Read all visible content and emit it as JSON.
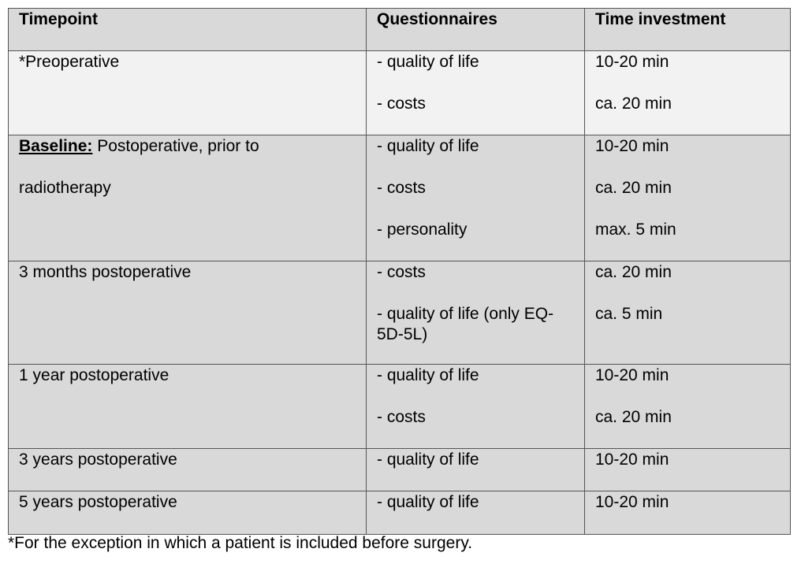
{
  "table": {
    "headers": [
      "Timepoint",
      "Questionnaires",
      "Time investment"
    ],
    "rows": [
      {
        "timepoint_prefix": "",
        "timepoint": "*Preoperative",
        "timepoint_line2": "",
        "questionnaires": [
          "- quality of life",
          "- costs"
        ],
        "time": [
          "10-20 min",
          "ca. 20 min"
        ]
      },
      {
        "timepoint_prefix": "Baseline:",
        "timepoint": " Postoperative, prior to",
        "timepoint_line2": "radiotherapy",
        "questionnaires": [
          "- quality of life",
          "- costs",
          "- personality"
        ],
        "time": [
          "10-20 min",
          "ca. 20 min",
          "max. 5 min"
        ]
      },
      {
        "timepoint_prefix": "",
        "timepoint": "3 months postoperative",
        "timepoint_line2": "",
        "questionnaires": [
          "- costs",
          "- quality of life (only EQ-",
          "5D-5L)"
        ],
        "time": [
          "ca. 20 min",
          "ca. 5 min"
        ]
      },
      {
        "timepoint_prefix": "",
        "timepoint": "1 year postoperative",
        "timepoint_line2": "",
        "questionnaires": [
          "- quality of life",
          "- costs"
        ],
        "time": [
          "10-20 min",
          "ca. 20 min"
        ]
      },
      {
        "timepoint_prefix": "",
        "timepoint": "3 years postoperative",
        "timepoint_line2": "",
        "questionnaires": [
          "- quality of life"
        ],
        "time": [
          "10-20 min"
        ]
      },
      {
        "timepoint_prefix": "",
        "timepoint": "5 years postoperative",
        "timepoint_line2": "",
        "questionnaires": [
          "- quality of life"
        ],
        "time": [
          "10-20 min"
        ]
      }
    ]
  },
  "footnote": "*For the exception in which a patient is included before surgery.",
  "colors": {
    "header_bg": "#d9d9d9",
    "preoperative_bg": "#f2f2f2",
    "row_bg": "#d9d9d9",
    "border": "#555555"
  }
}
